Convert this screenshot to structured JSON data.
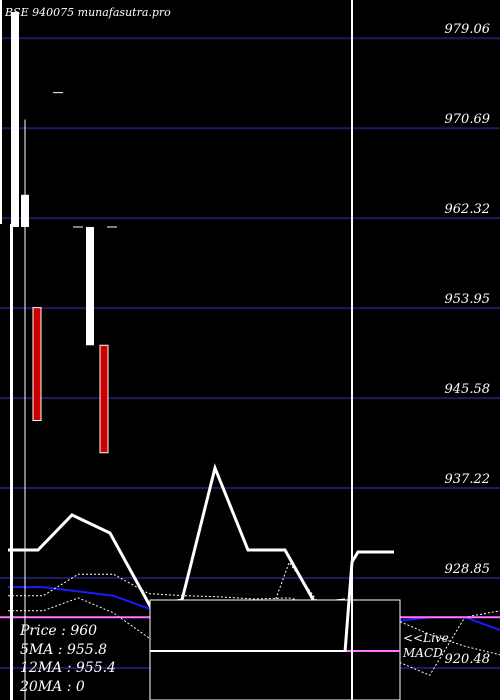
{
  "chart_data": {
    "type": "candlestick",
    "title": "BSE 940075 munafasutra.pro",
    "y_ticks": [
      979.06,
      970.69,
      962.32,
      953.95,
      945.58,
      937.22,
      928.85,
      920.48
    ],
    "ylim": [
      917.5,
      981.5
    ],
    "bull_color": "#ffffff",
    "bear_color": "#cc0000",
    "candles": [
      {
        "open": 961.5,
        "high": 981.5,
        "low": 961.5,
        "close": 981.5,
        "dir": "up"
      },
      {
        "open": 961.5,
        "high": 971.5,
        "low": 917.0,
        "close": 964.5,
        "dir": "up"
      },
      {
        "open": 954.0,
        "high": 954.0,
        "low": 943.5,
        "close": 943.5,
        "dir": "down"
      },
      {
        "open": 974.0,
        "high": 974.0,
        "low": 974.0,
        "close": 974.0,
        "dir": "flat"
      },
      {
        "open": 961.5,
        "high": 961.5,
        "low": 961.5,
        "close": 961.5,
        "dir": "flat"
      },
      {
        "open": 950.5,
        "high": 961.5,
        "low": 950.5,
        "close": 961.5,
        "dir": "up"
      },
      {
        "open": 950.5,
        "high": 950.5,
        "low": 940.5,
        "close": 940.5,
        "dir": "down"
      },
      {
        "open": 961.5,
        "high": 961.5,
        "low": 961.5,
        "close": 961.5,
        "dir": "flat"
      }
    ],
    "series": [
      {
        "values": [
          925.8,
          925.8,
          927.0,
          925.6,
          923.3,
          922.0,
          920.3,
          921.3,
          930.3,
          925.8,
          925.8,
          921.2,
          919.8,
          925.2,
          925.8
        ]
      },
      {
        "values": [
          928.0,
          928.0,
          927.6,
          927.2,
          926.0,
          925.2,
          924.5,
          923.6,
          922.9,
          922.2,
          924.0,
          924.8,
          925.2,
          925.2,
          924.0
        ]
      },
      {
        "values": [
          927.2,
          927.2,
          929.2,
          929.2,
          927.4,
          927.2,
          927.1,
          926.9,
          927.0,
          926.2,
          926.4,
          925.0,
          923.6,
          922.5,
          921.7
        ]
      }
    ],
    "average_line": 925.2,
    "macd_values": [
      0.0,
      0.0,
      0.0,
      0.0,
      0.0,
      0.0,
      0.0,
      0.0
    ],
    "macd_last": 0.0
  },
  "stats": {
    "price_line": "Price   : 960",
    "ma1_line": "5MA : 955.8",
    "ma2_line": "12MA : 955.4",
    "ma3_line": "20MA : 0"
  },
  "macd_label_line1": "<<Live",
  "macd_label_line2": "MACD"
}
